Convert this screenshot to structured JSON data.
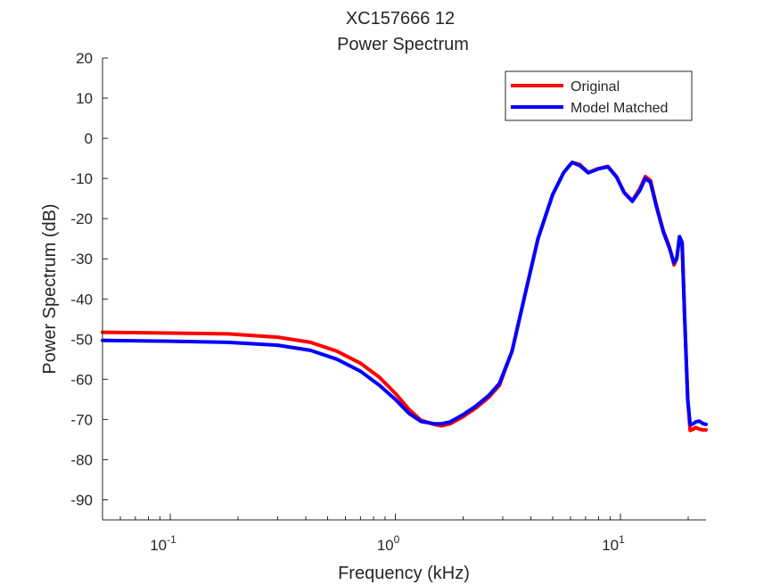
{
  "chart_data": {
    "type": "line",
    "title_line1": "XC157666 12",
    "title_line2": "Power Spectrum",
    "xlabel": "Frequency (kHz)",
    "ylabel": "Power Spectrum (dB)",
    "xscale": "log",
    "xlim": [
      0.05,
      24
    ],
    "ylim": [
      -95,
      20
    ],
    "yticks": [
      20,
      10,
      0,
      -10,
      -20,
      -30,
      -40,
      -50,
      -60,
      -70,
      -80,
      -90
    ],
    "ytick_labels": [
      "20",
      "10",
      "0",
      "-10",
      "-20",
      "-30",
      "-40",
      "-50",
      "-60",
      "-70",
      "-80",
      "-90"
    ],
    "xticks": [
      0.1,
      1,
      10
    ],
    "xtick_labels": [
      {
        "base": "10",
        "exp": "-1"
      },
      {
        "base": "10",
        "exp": "0"
      },
      {
        "base": "10",
        "exp": "1"
      }
    ],
    "legend_position": "top-right",
    "series": [
      {
        "name": "Original",
        "color": "#ff0000",
        "x": [
          0.05,
          0.1,
          0.18,
          0.3,
          0.42,
          0.55,
          0.7,
          0.85,
          1.0,
          1.15,
          1.3,
          1.5,
          1.6,
          1.75,
          2.0,
          2.3,
          2.6,
          2.9,
          3.3,
          3.8,
          4.3,
          5.0,
          5.6,
          6.1,
          6.6,
          7.2,
          8.0,
          8.8,
          9.6,
          10.4,
          11.3,
          12.2,
          12.9,
          13.6,
          14.5,
          15.5,
          16.5,
          17.3,
          17.8,
          18.3,
          18.8,
          19.3,
          19.9,
          20.4,
          20.9,
          21.6,
          22.4,
          23.2,
          24.0
        ],
        "y": [
          -48.3,
          -48.5,
          -48.7,
          -49.5,
          -50.8,
          -53,
          -56,
          -59.5,
          -63.5,
          -67.5,
          -70.2,
          -71.3,
          -71.6,
          -71.1,
          -69.3,
          -67,
          -64.5,
          -61.5,
          -53,
          -38,
          -25,
          -14,
          -8.5,
          -6,
          -6.5,
          -8.5,
          -7.5,
          -7,
          -9.5,
          -13.5,
          -15.5,
          -12.5,
          -9.5,
          -10.5,
          -17,
          -23,
          -27,
          -31.5,
          -30,
          -24.5,
          -26,
          -45,
          -65,
          -72.7,
          -72.5,
          -72,
          -72.4,
          -72.6,
          -72.6
        ]
      },
      {
        "name": "Model Matched",
        "color": "#0000ff",
        "x": [
          0.05,
          0.1,
          0.18,
          0.3,
          0.42,
          0.55,
          0.7,
          0.85,
          1.0,
          1.15,
          1.3,
          1.5,
          1.6,
          1.75,
          2.0,
          2.3,
          2.6,
          2.9,
          3.3,
          3.8,
          4.3,
          5.0,
          5.6,
          6.1,
          6.6,
          7.2,
          8.0,
          8.8,
          9.6,
          10.4,
          11.3,
          12.2,
          12.9,
          13.6,
          14.5,
          15.5,
          16.5,
          17.3,
          17.8,
          18.3,
          18.8,
          19.3,
          19.9,
          20.4,
          20.9,
          21.6,
          22.4,
          23.2,
          24.0
        ],
        "y": [
          -50.3,
          -50.5,
          -50.8,
          -51.5,
          -52.8,
          -55,
          -58,
          -61.5,
          -65,
          -68.5,
          -70.5,
          -71.1,
          -71.1,
          -70.6,
          -68.8,
          -66.5,
          -64,
          -61,
          -53,
          -38,
          -25,
          -14,
          -8.5,
          -6,
          -6.8,
          -8.6,
          -7.6,
          -7.1,
          -9.6,
          -13.6,
          -15.7,
          -13,
          -10,
          -11,
          -17.3,
          -23.3,
          -27.3,
          -31,
          -29.8,
          -24.5,
          -26,
          -45,
          -65,
          -71.2,
          -71.2,
          -70.6,
          -70.4,
          -71,
          -71.2
        ]
      }
    ]
  }
}
